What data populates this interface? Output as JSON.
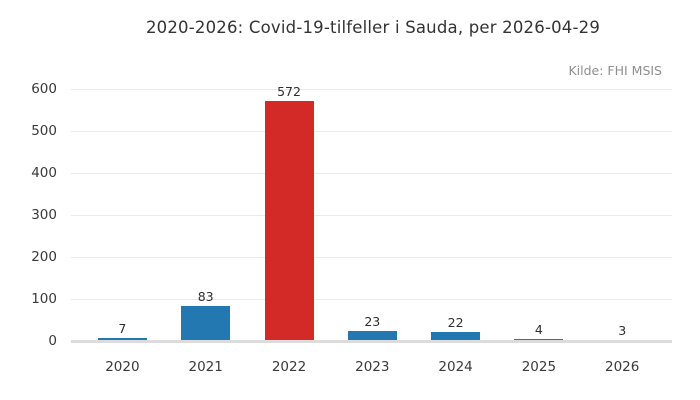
{
  "chart_data": {
    "type": "bar",
    "title": "2020-2026: Covid-19-tilfeller i Sauda, per 2026-04-29",
    "source": "Kilde: FHI MSIS",
    "categories": [
      "2020",
      "2021",
      "2022",
      "2023",
      "2024",
      "2025",
      "2026"
    ],
    "values": [
      7,
      83,
      572,
      23,
      22,
      4,
      3
    ],
    "bar_colors": [
      "#2478b1",
      "#2478b1",
      "#d32a28",
      "#2478b1",
      "#2478b1",
      "#2478b1",
      "#2478b1"
    ],
    "highlight_category": "2022",
    "xlabel": "",
    "ylabel": "",
    "ylim": [
      0,
      600
    ],
    "yticks": [
      0,
      100,
      200,
      300,
      400,
      500,
      600
    ],
    "grid": "horizontal",
    "legend_position": "none",
    "value_labels": true,
    "colors": {
      "background": "#ffffff",
      "gridline": "#e9e9e9",
      "baseline": "#dcdcdc",
      "title_text": "#333333",
      "tick_text": "#3a3a3a",
      "value_label_text": "#2e2e2e",
      "source_text": "#8f8f8f",
      "bar_default": "#2478b1",
      "bar_highlight": "#d32a28"
    }
  }
}
